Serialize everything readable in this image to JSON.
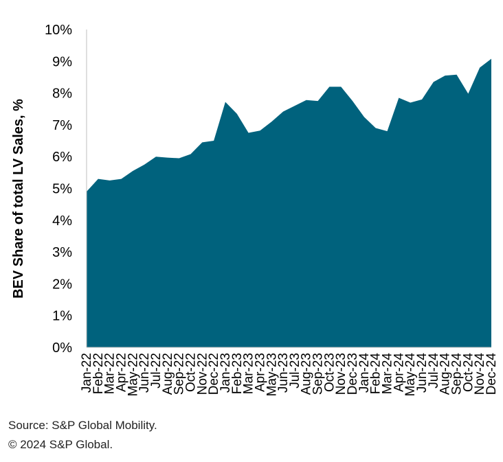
{
  "chart_data": {
    "type": "area",
    "ylabel": "BEV Share of total LV Sales, %",
    "xlabel": "",
    "ylim": [
      0,
      10
    ],
    "yticks": [
      0,
      1,
      2,
      3,
      4,
      5,
      6,
      7,
      8,
      9,
      10
    ],
    "ytick_labels": [
      "0%",
      "1%",
      "2%",
      "3%",
      "4%",
      "5%",
      "6%",
      "7%",
      "8%",
      "9%",
      "10%"
    ],
    "grid": false,
    "legend": "none",
    "categories": [
      "Jan-22",
      "Feb-22",
      "Mar-22",
      "Apr-22",
      "May-22",
      "Jun-22",
      "Jul-22",
      "Aug-22",
      "Sep-22",
      "Oct-22",
      "Nov-22",
      "Dec-22",
      "Jan-23",
      "Feb-23",
      "Mar-23",
      "Apr-23",
      "May-23",
      "Jun-23",
      "Jul-23",
      "Aug-23",
      "Sep-23",
      "Oct-23",
      "Nov-23",
      "Dec-23",
      "Jan-24",
      "Feb-24",
      "Mar-24",
      "Apr-24",
      "May-24",
      "Jun-24",
      "Jul-24",
      "Aug-24",
      "Sep-24",
      "Oct-24",
      "Nov-24",
      "Dec-24"
    ],
    "series": [
      {
        "values": [
          4.9,
          5.3,
          5.25,
          5.3,
          5.55,
          5.75,
          6.0,
          5.97,
          5.95,
          6.08,
          6.45,
          6.5,
          7.72,
          7.35,
          6.75,
          6.82,
          7.1,
          7.42,
          7.6,
          7.78,
          7.75,
          8.2,
          8.2,
          7.75,
          7.25,
          6.9,
          6.8,
          7.85,
          7.7,
          7.8,
          8.35,
          8.55,
          8.58,
          7.98,
          8.8,
          9.08
        ]
      }
    ],
    "colors": {
      "area": "#00627d"
    }
  },
  "footer": {
    "source": "Source: S&P Global Mobility.",
    "copyright": "© 2024 S&P Global."
  }
}
